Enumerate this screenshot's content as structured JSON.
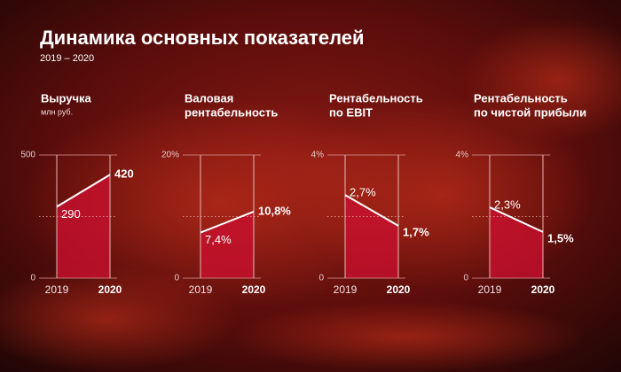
{
  "header": {
    "title": "Динамика основных показателей",
    "subtitle": "2019 – 2020"
  },
  "chart_data": [
    {
      "type": "area",
      "title": [
        "Выручка"
      ],
      "subtitle": "млн руб.",
      "categories": [
        "2019",
        "2020"
      ],
      "values": [
        290,
        420
      ],
      "ylim": [
        0,
        500
      ],
      "yticks": [
        0,
        500
      ],
      "color": "#c8102e",
      "line_color": "#ffffff"
    },
    {
      "type": "area",
      "title": [
        "Валовая",
        "рентабельность"
      ],
      "categories": [
        "2019",
        "2020"
      ],
      "values": [
        7.4,
        10.8
      ],
      "value_labels": [
        "7,4%",
        "10,8%"
      ],
      "ylim": [
        0,
        20
      ],
      "yticks": [
        0,
        {
          "value": 20,
          "label": "20%"
        }
      ],
      "color": "#c8102e",
      "line_color": "#ffffff"
    },
    {
      "type": "area",
      "title": [
        "Рентабельность",
        "по EBIT"
      ],
      "categories": [
        "2019",
        "2020"
      ],
      "values": [
        2.7,
        1.7
      ],
      "value_labels": [
        "2,7%",
        "1,7%"
      ],
      "ylim": [
        0,
        4
      ],
      "yticks": [
        0,
        {
          "value": 4,
          "label": "4%"
        }
      ],
      "color": "#c8102e",
      "line_color": "#ffffff"
    },
    {
      "type": "area",
      "title": [
        "Рентабельность",
        "по чистой прибыли"
      ],
      "categories": [
        "2019",
        "2020"
      ],
      "values": [
        2.3,
        1.5
      ],
      "value_labels": [
        "2,3%",
        "1,5%"
      ],
      "ylim": [
        0,
        4
      ],
      "yticks": [
        0,
        {
          "value": 4,
          "label": "4%"
        }
      ],
      "color": "#c8102e",
      "line_color": "#ffffff"
    }
  ]
}
